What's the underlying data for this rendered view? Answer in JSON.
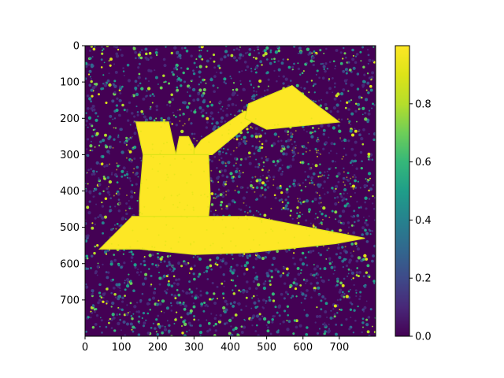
{
  "chart_data": {
    "type": "heatmap",
    "title": "",
    "xlabel": "",
    "ylabel": "",
    "xlim": [
      0,
      800
    ],
    "ylim": [
      800,
      0
    ],
    "x_ticks": [
      "0",
      "100",
      "200",
      "300",
      "400",
      "500",
      "600",
      "700"
    ],
    "y_ticks": [
      "0",
      "100",
      "200",
      "300",
      "400",
      "500",
      "600",
      "700"
    ],
    "colormap": "viridis",
    "colorbar": {
      "range": [
        0.0,
        1.0
      ],
      "ticks": [
        "0.0",
        "0.2",
        "0.4",
        "0.6",
        "0.8"
      ]
    },
    "background": {
      "value_low": 0.05,
      "value_high": 0.9
    },
    "subject": {
      "description": "bulldozer silhouette",
      "value": 0.98,
      "regions": [
        {
          "name": "blade-base",
          "points": [
            [
              40,
              560
            ],
            [
              130,
              470
            ],
            [
              340,
              470
            ],
            [
              460,
              470
            ],
            [
              770,
              530
            ],
            [
              690,
              545
            ],
            [
              450,
              570
            ],
            [
              300,
              575
            ],
            [
              150,
              560
            ]
          ]
        },
        {
          "name": "body",
          "points": [
            [
              150,
              420
            ],
            [
              160,
              300
            ],
            [
              340,
              300
            ],
            [
              345,
              420
            ],
            [
              340,
              470
            ],
            [
              150,
              470
            ]
          ]
        },
        {
          "name": "cab",
          "points": [
            [
              140,
              210
            ],
            [
              230,
              210
            ],
            [
              250,
              300
            ],
            [
              160,
              300
            ]
          ]
        },
        {
          "name": "arm",
          "points": [
            [
              290,
              300
            ],
            [
              320,
              260
            ],
            [
              440,
              180
            ],
            [
              470,
              200
            ],
            [
              350,
              300
            ]
          ]
        },
        {
          "name": "bucket",
          "points": [
            [
              450,
              160
            ],
            [
              570,
              110
            ],
            [
              620,
              150
            ],
            [
              700,
              210
            ],
            [
              600,
              220
            ],
            [
              500,
              230
            ],
            [
              440,
              200
            ]
          ]
        },
        {
          "name": "hydraulic",
          "points": [
            [
              250,
              300
            ],
            [
              260,
              250
            ],
            [
              285,
              250
            ],
            [
              300,
              280
            ],
            [
              300,
              300
            ]
          ]
        }
      ]
    }
  }
}
